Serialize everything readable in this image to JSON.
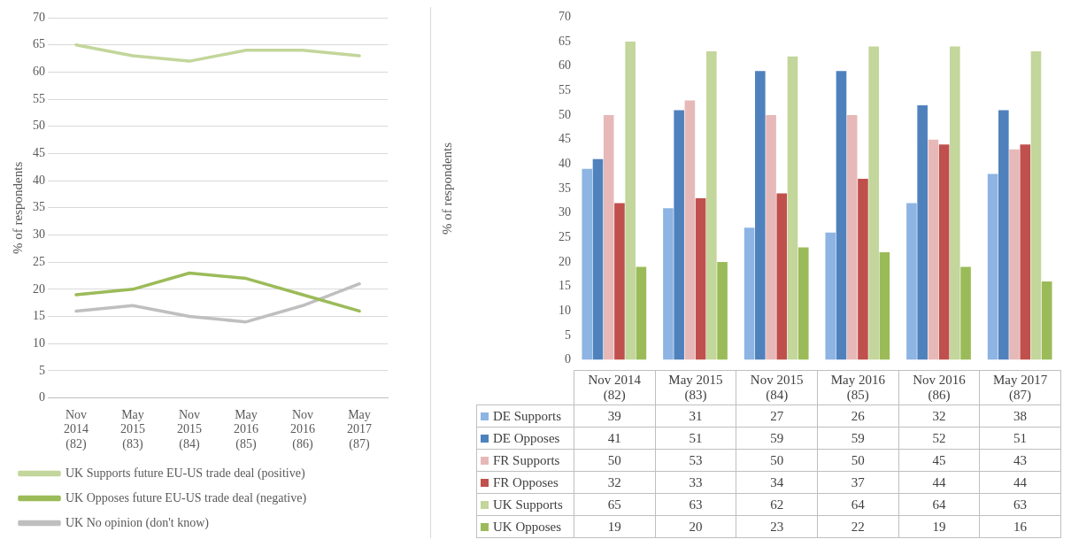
{
  "chart_data": [
    {
      "type": "line",
      "ylabel": "% of respondents",
      "categories": [
        "Nov 2014 (82)",
        "May 2015 (83)",
        "Nov 2015 (84)",
        "May 2016 (85)",
        "Nov 2016 (86)",
        "May 2017 (87)"
      ],
      "series": [
        {
          "name": "UK Supports future EU-US trade deal (positive)",
          "color": "#c3d69b",
          "values": [
            65,
            63,
            62,
            64,
            64,
            63
          ]
        },
        {
          "name": "UK Opposes future EU-US trade deal (negative)",
          "color": "#9bbb59",
          "values": [
            19,
            20,
            23,
            22,
            19,
            16
          ]
        },
        {
          "name": "UK No opinion (don't know)",
          "color": "#bfbfbf",
          "values": [
            16,
            17,
            15,
            14,
            17,
            21
          ]
        }
      ],
      "ylim": [
        0,
        70
      ],
      "yticks": [
        0,
        5,
        10,
        15,
        20,
        25,
        30,
        35,
        40,
        45,
        50,
        55,
        60,
        65,
        70
      ],
      "grid": "y",
      "legend": "bottom",
      "marker": "none"
    },
    {
      "type": "bar",
      "ylabel": "% of respondents",
      "categories": [
        "Nov 2014 (82)",
        "May 2015 (83)",
        "Nov 2015 (84)",
        "May 2016 (85)",
        "Nov 2016 (86)",
        "May 2017 (87)"
      ],
      "series": [
        {
          "name": "DE Supports",
          "color": "#8db4e2",
          "values": [
            39,
            31,
            27,
            26,
            32,
            38
          ]
        },
        {
          "name": "DE Opposes",
          "color": "#4f81bd",
          "values": [
            41,
            51,
            59,
            59,
            52,
            51
          ]
        },
        {
          "name": "FR Supports",
          "color": "#e6b9b8",
          "values": [
            50,
            53,
            50,
            50,
            45,
            43
          ]
        },
        {
          "name": "FR Opposes",
          "color": "#c0504d",
          "values": [
            32,
            33,
            34,
            37,
            44,
            44
          ]
        },
        {
          "name": "UK Supports",
          "color": "#c3d69b",
          "values": [
            65,
            63,
            62,
            64,
            64,
            63
          ]
        },
        {
          "name": "UK Opposes",
          "color": "#9bbb59",
          "values": [
            19,
            20,
            23,
            22,
            19,
            16
          ]
        }
      ],
      "ylim": [
        0,
        70
      ],
      "yticks": [
        0,
        5,
        10,
        15,
        20,
        25,
        30,
        35,
        40,
        45,
        50,
        55,
        60,
        65,
        70
      ],
      "grid": false,
      "legend": "bottom",
      "data_labels": true
    }
  ]
}
